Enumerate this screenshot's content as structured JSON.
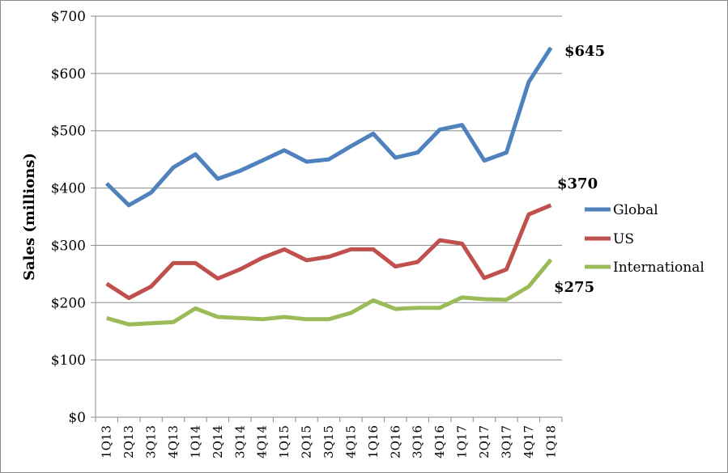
{
  "chart_data": {
    "type": "line",
    "title": "",
    "xlabel": "",
    "ylabel": "Sales (millions)",
    "ylim": [
      0,
      700
    ],
    "y_ticks": [
      "$0",
      "$100",
      "$200",
      "$300",
      "$400",
      "$500",
      "$600",
      "$700"
    ],
    "y_tick_values": [
      0,
      100,
      200,
      300,
      400,
      500,
      600,
      700
    ],
    "grid": "horizontal",
    "legend_position": "right",
    "categories": [
      "1Q13",
      "2Q13",
      "3Q13",
      "4Q13",
      "1Q14",
      "2Q14",
      "3Q14",
      "4Q14",
      "1Q15",
      "2Q15",
      "3Q15",
      "4Q15",
      "1Q16",
      "2Q16",
      "3Q16",
      "4Q16",
      "1Q17",
      "2Q17",
      "3Q17",
      "4Q17",
      "1Q18"
    ],
    "series": [
      {
        "name": "Global",
        "color": "#4F81BD",
        "values": [
          408,
          370,
          392,
          436,
          459,
          416,
          430,
          448,
          466,
          446,
          450,
          473,
          495,
          453,
          462,
          502,
          510,
          448,
          462,
          585,
          645
        ]
      },
      {
        "name": "US",
        "color": "#C0504D",
        "values": [
          233,
          208,
          228,
          269,
          269,
          242,
          258,
          278,
          293,
          274,
          280,
          293,
          293,
          263,
          271,
          309,
          303,
          243,
          258,
          354,
          370
        ]
      },
      {
        "name": "International",
        "color": "#9BBB59",
        "values": [
          173,
          162,
          164,
          166,
          190,
          175,
          173,
          171,
          175,
          171,
          171,
          182,
          204,
          189,
          191,
          191,
          209,
          206,
          205,
          228,
          275
        ]
      }
    ],
    "annotations": [
      {
        "text": "$645",
        "series": "Global"
      },
      {
        "text": "$370",
        "series": "US"
      },
      {
        "text": "$275",
        "series": "International"
      }
    ]
  }
}
